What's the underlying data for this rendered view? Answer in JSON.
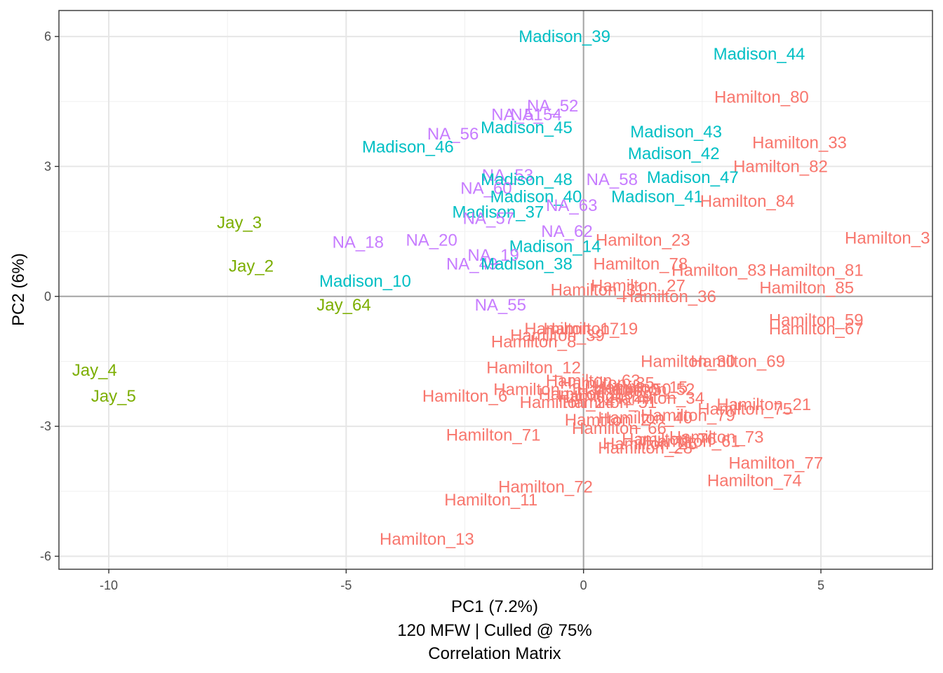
{
  "chart_data": {
    "type": "scatter",
    "xlabel_lines": [
      "PC1 (7.2%)",
      "120 MFW | Culled @ 75%",
      "Correlation Matrix"
    ],
    "ylabel": "PC2 (6%)",
    "xlim": [
      -11.05,
      7.35
    ],
    "ylim": [
      -6.3,
      6.6
    ],
    "x_ticks": [
      -10,
      -5,
      0,
      5
    ],
    "y_ticks": [
      -6,
      -3,
      0,
      3,
      6
    ],
    "x_tick_labels": [
      "-10",
      "-5",
      "0",
      "5"
    ],
    "y_tick_labels": [
      "-6",
      "-3",
      "0",
      "3",
      "6"
    ],
    "grid": true,
    "legend": "none",
    "series_colors": {
      "Hamilton": "#F8766D",
      "Jay": "#7CAE00",
      "Madison": "#00BFC4",
      "NA": "#C77CFF"
    },
    "points": [
      {
        "label": "Madison_39",
        "group": "Madison",
        "x": -0.4,
        "y": 6.0
      },
      {
        "label": "Madison_44",
        "group": "Madison",
        "x": 3.7,
        "y": 5.6
      },
      {
        "label": "Hamilton_80",
        "group": "Hamilton",
        "x": 3.75,
        "y": 4.6
      },
      {
        "label": "NA_52",
        "group": "NA",
        "x": -0.65,
        "y": 4.4
      },
      {
        "label": "NA_51",
        "group": "NA",
        "x": -1.4,
        "y": 4.2
      },
      {
        "label": "NA_54",
        "group": "NA",
        "x": -1.0,
        "y": 4.2
      },
      {
        "label": "Madison_45",
        "group": "Madison",
        "x": -1.2,
        "y": 3.9
      },
      {
        "label": "NA_56",
        "group": "NA",
        "x": -2.75,
        "y": 3.75
      },
      {
        "label": "Madison_43",
        "group": "Madison",
        "x": 1.95,
        "y": 3.8
      },
      {
        "label": "Madison_46",
        "group": "Madison",
        "x": -3.7,
        "y": 3.45
      },
      {
        "label": "Hamilton_33",
        "group": "Hamilton",
        "x": 4.55,
        "y": 3.55
      },
      {
        "label": "Madison_42",
        "group": "Madison",
        "x": 1.9,
        "y": 3.3
      },
      {
        "label": "Hamilton_82",
        "group": "Hamilton",
        "x": 4.15,
        "y": 3.0
      },
      {
        "label": "NA_53",
        "group": "NA",
        "x": -1.6,
        "y": 2.8
      },
      {
        "label": "Madison_48",
        "group": "Madison",
        "x": -1.2,
        "y": 2.7
      },
      {
        "label": "NA_58",
        "group": "NA",
        "x": 0.6,
        "y": 2.7
      },
      {
        "label": "Madison_47",
        "group": "Madison",
        "x": 2.3,
        "y": 2.75
      },
      {
        "label": "NA_60",
        "group": "NA",
        "x": -2.05,
        "y": 2.5
      },
      {
        "label": "Madison_40",
        "group": "Madison",
        "x": -1.0,
        "y": 2.3
      },
      {
        "label": "Madison_41",
        "group": "Madison",
        "x": 1.55,
        "y": 2.3
      },
      {
        "label": "Hamilton_84",
        "group": "Hamilton",
        "x": 3.45,
        "y": 2.2
      },
      {
        "label": "NA_63",
        "group": "NA",
        "x": -0.25,
        "y": 2.1
      },
      {
        "label": "Madison_37",
        "group": "Madison",
        "x": -1.8,
        "y": 1.95
      },
      {
        "label": "NA_57",
        "group": "NA",
        "x": -2.0,
        "y": 1.8
      },
      {
        "label": "Jay_3",
        "group": "Jay",
        "x": -7.25,
        "y": 1.7
      },
      {
        "label": "NA_62",
        "group": "NA",
        "x": -0.35,
        "y": 1.5
      },
      {
        "label": "Hamilton_3",
        "group": "Hamilton",
        "x": 6.4,
        "y": 1.35
      },
      {
        "label": "Hamilton_23",
        "group": "Hamilton",
        "x": 1.25,
        "y": 1.3
      },
      {
        "label": "NA_18",
        "group": "NA",
        "x": -4.75,
        "y": 1.25
      },
      {
        "label": "NA_20",
        "group": "NA",
        "x": -3.2,
        "y": 1.3
      },
      {
        "label": "Madison_14",
        "group": "Madison",
        "x": -0.6,
        "y": 1.15
      },
      {
        "label": "NA_19",
        "group": "NA",
        "x": -1.9,
        "y": 0.95
      },
      {
        "label": "Hamilton_78",
        "group": "Hamilton",
        "x": 1.2,
        "y": 0.75
      },
      {
        "label": "NA_49",
        "group": "NA",
        "x": -2.35,
        "y": 0.75
      },
      {
        "label": "Madison_38",
        "group": "Madison",
        "x": -1.2,
        "y": 0.75
      },
      {
        "label": "Jay_2",
        "group": "Jay",
        "x": -7.0,
        "y": 0.7
      },
      {
        "label": "Hamilton_83",
        "group": "Hamilton",
        "x": 2.85,
        "y": 0.6
      },
      {
        "label": "Hamilton_81",
        "group": "Hamilton",
        "x": 4.9,
        "y": 0.6
      },
      {
        "label": "Madison_10",
        "group": "Madison",
        "x": -4.6,
        "y": 0.35
      },
      {
        "label": "Hamilton_27",
        "group": "Hamilton",
        "x": 1.15,
        "y": 0.25
      },
      {
        "label": "Hamilton_85",
        "group": "Hamilton",
        "x": 4.7,
        "y": 0.2
      },
      {
        "label": "Hamilton_31",
        "group": "Hamilton",
        "x": 0.3,
        "y": 0.15
      },
      {
        "label": "Hamilton_36",
        "group": "Hamilton",
        "x": 1.8,
        "y": 0.0
      },
      {
        "label": "Jay_64",
        "group": "Jay",
        "x": -5.05,
        "y": -0.2
      },
      {
        "label": "NA_55",
        "group": "NA",
        "x": -1.75,
        "y": -0.2
      },
      {
        "label": "Hamilton_59",
        "group": "Hamilton",
        "x": 4.9,
        "y": -0.55
      },
      {
        "label": "Hamilton_67",
        "group": "Hamilton",
        "x": 4.9,
        "y": -0.75
      },
      {
        "label": "Hamilton_17",
        "group": "Hamilton",
        "x": -0.25,
        "y": -0.75
      },
      {
        "label": "Hamilton_19",
        "group": "Hamilton",
        "x": 0.15,
        "y": -0.75
      },
      {
        "label": "Hamilton_39",
        "group": "Hamilton",
        "x": -0.55,
        "y": -0.9
      },
      {
        "label": "Hamilton_8",
        "group": "Hamilton",
        "x": -1.05,
        "y": -1.05
      },
      {
        "label": "Hamilton_30",
        "group": "Hamilton",
        "x": 2.2,
        "y": -1.5
      },
      {
        "label": "Hamilton_69",
        "group": "Hamilton",
        "x": 3.25,
        "y": -1.5
      },
      {
        "label": "Hamilton_12",
        "group": "Hamilton",
        "x": -1.05,
        "y": -1.65
      },
      {
        "label": "Hamilton_63",
        "group": "Hamilton",
        "x": 0.2,
        "y": -1.95
      },
      {
        "label": "Hamilton_35",
        "group": "Hamilton",
        "x": 0.5,
        "y": -2.0
      },
      {
        "label": "Hamilton_15",
        "group": "Hamilton",
        "x": 1.2,
        "y": -2.1
      },
      {
        "label": "Hamilton_50",
        "group": "Hamilton",
        "x": 0.85,
        "y": -2.15
      },
      {
        "label": "Hamilton_52",
        "group": "Hamilton",
        "x": 1.35,
        "y": -2.15
      },
      {
        "label": "Hamilton_1",
        "group": "Hamilton",
        "x": -1.0,
        "y": -2.15
      },
      {
        "label": "Hamilton_6",
        "group": "Hamilton",
        "x": -2.5,
        "y": -2.3
      },
      {
        "label": "Hamilton_16",
        "group": "Hamilton",
        "x": 0.05,
        "y": -2.25
      },
      {
        "label": "Hamilton_29",
        "group": "Hamilton",
        "x": 0.45,
        "y": -2.3
      },
      {
        "label": "Hamilton_34",
        "group": "Hamilton",
        "x": 1.55,
        "y": -2.35
      },
      {
        "label": "Hamilton_24",
        "group": "Hamilton",
        "x": -0.35,
        "y": -2.45
      },
      {
        "label": "Hamilton_51",
        "group": "Hamilton",
        "x": 0.55,
        "y": -2.45
      },
      {
        "label": "Hamilton_21",
        "group": "Hamilton",
        "x": 3.8,
        "y": -2.5
      },
      {
        "label": "Hamilton_75",
        "group": "Hamilton",
        "x": 3.4,
        "y": -2.6
      },
      {
        "label": "Hamilton_79",
        "group": "Hamilton",
        "x": 2.2,
        "y": -2.75
      },
      {
        "label": "Hamilton_40",
        "group": "Hamilton",
        "x": 1.3,
        "y": -2.8
      },
      {
        "label": "Hamilton_2",
        "group": "Hamilton",
        "x": 0.5,
        "y": -2.85
      },
      {
        "label": "Hamilton_66",
        "group": "Hamilton",
        "x": 0.75,
        "y": -3.05
      },
      {
        "label": "Hamilton_71",
        "group": "Hamilton",
        "x": -1.9,
        "y": -3.2
      },
      {
        "label": "Hamilton_73",
        "group": "Hamilton",
        "x": 2.8,
        "y": -3.25
      },
      {
        "label": "Hamilton_76",
        "group": "Hamilton",
        "x": 1.8,
        "y": -3.3
      },
      {
        "label": "Hamilton_61",
        "group": "Hamilton",
        "x": 2.3,
        "y": -3.35
      },
      {
        "label": "Hamilton_26",
        "group": "Hamilton",
        "x": 1.4,
        "y": -3.4
      },
      {
        "label": "Hamilton_28",
        "group": "Hamilton",
        "x": 1.3,
        "y": -3.5
      },
      {
        "label": "Hamilton_77",
        "group": "Hamilton",
        "x": 4.05,
        "y": -3.85
      },
      {
        "label": "Hamilton_74",
        "group": "Hamilton",
        "x": 3.6,
        "y": -4.25
      },
      {
        "label": "Hamilton_72",
        "group": "Hamilton",
        "x": -0.8,
        "y": -4.4
      },
      {
        "label": "Hamilton_11",
        "group": "Hamilton",
        "x": -1.95,
        "y": -4.7
      },
      {
        "label": "Hamilton_13",
        "group": "Hamilton",
        "x": -3.3,
        "y": -5.6
      },
      {
        "label": "Jay_4",
        "group": "Jay",
        "x": -10.3,
        "y": -1.7
      },
      {
        "label": "Jay_5",
        "group": "Jay",
        "x": -9.9,
        "y": -2.3
      }
    ]
  }
}
